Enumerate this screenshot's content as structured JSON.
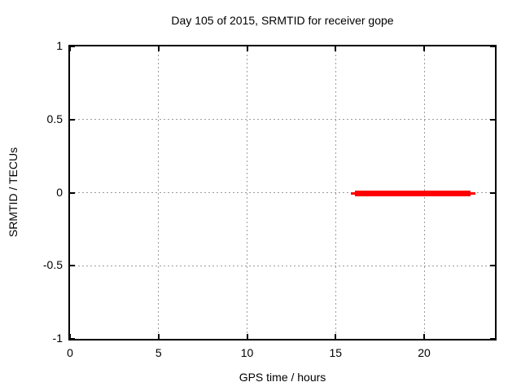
{
  "chart_data": {
    "type": "line",
    "title": "Day 105 of 2015, SRMTID for receiver gope",
    "xlabel": "GPS time / hours",
    "ylabel": "SRMTID / TECUs",
    "xlim": [
      0,
      24
    ],
    "ylim": [
      -1,
      1
    ],
    "xticks": [
      0,
      5,
      10,
      15,
      20
    ],
    "yticks": [
      1,
      0.5,
      0,
      -0.5,
      -1
    ],
    "grid": true,
    "legend": "none",
    "series": [
      {
        "name": "SRMTID",
        "color": "#ff0000",
        "y": 0,
        "x_start": 16,
        "x_end": 23,
        "description": "Constant value 0 TECUs from GPS time 16 h to 23 h",
        "render_segments": [
          {
            "x1": 15.85,
            "x2": 16.1,
            "weight": "thin"
          },
          {
            "x1": 16.1,
            "x2": 22.6,
            "weight": "thick"
          },
          {
            "x1": 22.6,
            "x2": 22.9,
            "weight": "thin"
          }
        ]
      }
    ],
    "colors": {
      "background": "#ffffff",
      "border": "#000000",
      "grid": "#9c9c9c",
      "text": "#000000"
    }
  }
}
